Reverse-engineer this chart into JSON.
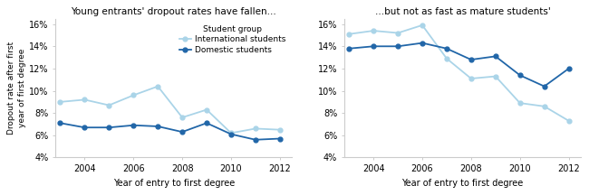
{
  "left_title": "Young entrants' dropout rates have fallen...",
  "right_title": "...but not as fast as mature students'",
  "xlabel": "Year of entry to first degree",
  "ylabel": "Dropout rate after first\nyear of first degree",
  "legend_title": "Student group",
  "legend_entries": [
    "International students",
    "Domestic students"
  ],
  "years": [
    2003,
    2004,
    2005,
    2006,
    2007,
    2008,
    2009,
    2010,
    2011,
    2012
  ],
  "left_international": [
    9.0,
    9.2,
    8.7,
    9.6,
    10.4,
    7.6,
    8.3,
    6.2,
    6.6,
    6.5
  ],
  "left_domestic": [
    7.1,
    6.7,
    6.7,
    6.9,
    6.8,
    6.3,
    7.1,
    6.1,
    5.6,
    5.7
  ],
  "right_international": [
    15.1,
    15.4,
    15.2,
    15.9,
    12.9,
    11.1,
    11.3,
    8.9,
    8.6,
    7.3
  ],
  "right_domestic": [
    13.8,
    14.0,
    14.0,
    14.3,
    13.8,
    12.8,
    13.1,
    11.4,
    10.4,
    12.0
  ],
  "color_international": "#aad4e8",
  "color_domestic": "#2166a8",
  "background_color": "#ffffff",
  "yticks": [
    0.04,
    0.06,
    0.08,
    0.1,
    0.12,
    0.14,
    0.16
  ],
  "xticks": [
    2004,
    2006,
    2008,
    2010,
    2012
  ],
  "xlim": [
    2002.8,
    2012.5
  ],
  "ylim": [
    0.04,
    0.165
  ]
}
